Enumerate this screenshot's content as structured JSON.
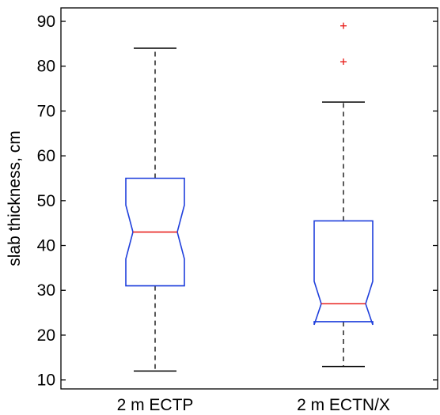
{
  "chart_data": {
    "type": "boxplot",
    "notched": true,
    "title": "",
    "xlabel": "",
    "ylabel": "slab thickness, cm",
    "ylim": [
      8,
      93
    ],
    "yticks": [
      10,
      20,
      30,
      40,
      50,
      60,
      70,
      80,
      90
    ],
    "grid": false,
    "colors": {
      "box": "#1f3fdc",
      "median": "#e8231f",
      "whisker": "#000000",
      "outlier": "#e8231f",
      "axis": "#000000"
    },
    "categories": [
      "2 m ECTP",
      "2 m ECTN/X"
    ],
    "series": [
      {
        "category": "2 m ECTP",
        "whisker_low": 12,
        "q1": 31,
        "notch_low": 37,
        "median": 43,
        "notch_high": 49,
        "q3": 55,
        "whisker_high": 84,
        "outliers": []
      },
      {
        "category": "2 m ECTN/X",
        "whisker_low": 13,
        "q1": 23,
        "notch_low": 22.3,
        "median": 27,
        "notch_high": 32,
        "q3": 45.5,
        "whisker_high": 72,
        "outliers": [
          81,
          89
        ]
      }
    ]
  }
}
